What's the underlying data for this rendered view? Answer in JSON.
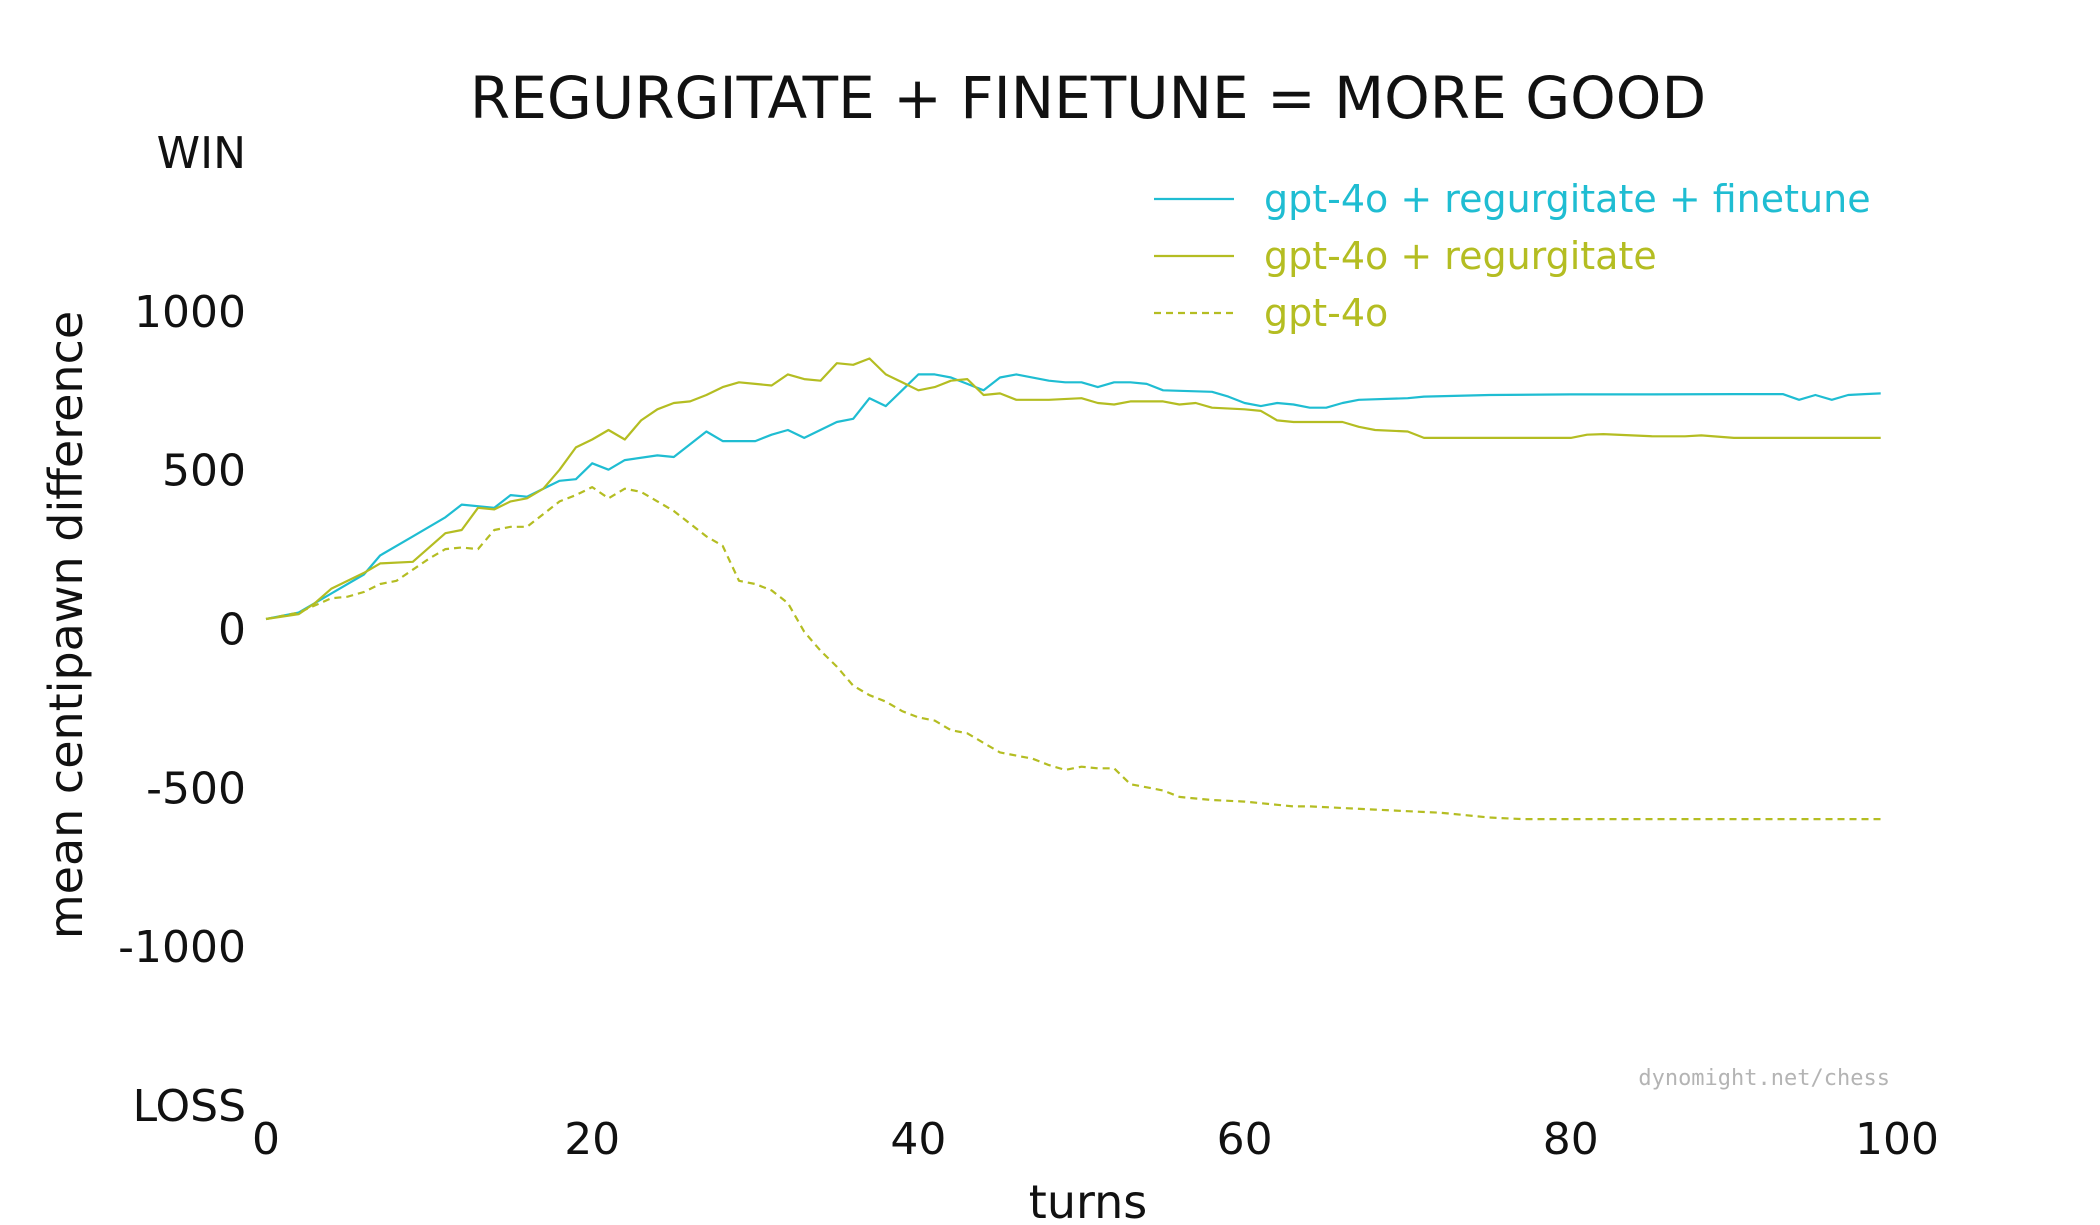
{
  "chart_data": {
    "type": "line",
    "title": "REGURGITATE + FINETUNE = MORE GOOD",
    "xlabel": "turns",
    "ylabel": "mean centipawn difference",
    "xlim": [
      0,
      100
    ],
    "ylim": [
      -1500,
      1500
    ],
    "x_ticks": [
      0,
      20,
      40,
      60,
      80,
      100
    ],
    "y_ticks": [
      {
        "value": 1500,
        "label": "WIN"
      },
      {
        "value": 1000,
        "label": "1000"
      },
      {
        "value": 500,
        "label": "500"
      },
      {
        "value": 0,
        "label": "0"
      },
      {
        "value": -500,
        "label": "-500"
      },
      {
        "value": -1000,
        "label": "-1000"
      },
      {
        "value": -1500,
        "label": "LOSS"
      }
    ],
    "grid": false,
    "legend_position": "top-right",
    "watermark": "dynomight.net/chess",
    "series": [
      {
        "name": "gpt-4o + regurgitate + finetune",
        "color": "#1fbdd2",
        "style": "solid",
        "points": [
          [
            0,
            30
          ],
          [
            2,
            50
          ],
          [
            4,
            110
          ],
          [
            6,
            170
          ],
          [
            7,
            230
          ],
          [
            9,
            290
          ],
          [
            11,
            350
          ],
          [
            12,
            390
          ],
          [
            14,
            380
          ],
          [
            15,
            420
          ],
          [
            16,
            415
          ],
          [
            18,
            465
          ],
          [
            19,
            470
          ],
          [
            20,
            520
          ],
          [
            21,
            500
          ],
          [
            22,
            530
          ],
          [
            24,
            545
          ],
          [
            25,
            540
          ],
          [
            26,
            580
          ],
          [
            27,
            620
          ],
          [
            28,
            590
          ],
          [
            30,
            590
          ],
          [
            31,
            610
          ],
          [
            32,
            625
          ],
          [
            33,
            600
          ],
          [
            35,
            650
          ],
          [
            36,
            660
          ],
          [
            37,
            725
          ],
          [
            38,
            700
          ],
          [
            39,
            750
          ],
          [
            40,
            800
          ],
          [
            41,
            800
          ],
          [
            42,
            790
          ],
          [
            43,
            770
          ],
          [
            44,
            750
          ],
          [
            45,
            790
          ],
          [
            46,
            800
          ],
          [
            48,
            780
          ],
          [
            49,
            775
          ],
          [
            50,
            775
          ],
          [
            51,
            760
          ],
          [
            52,
            775
          ],
          [
            53,
            775
          ],
          [
            54,
            770
          ],
          [
            55,
            750
          ],
          [
            58,
            745
          ],
          [
            59,
            730
          ],
          [
            60,
            710
          ],
          [
            61,
            700
          ],
          [
            62,
            710
          ],
          [
            63,
            705
          ],
          [
            64,
            695
          ],
          [
            65,
            695
          ],
          [
            66,
            710
          ],
          [
            67,
            720
          ],
          [
            70,
            725
          ],
          [
            71,
            730
          ],
          [
            75,
            735
          ],
          [
            80,
            737
          ],
          [
            85,
            737
          ],
          [
            90,
            738
          ],
          [
            93,
            738
          ],
          [
            94,
            720
          ],
          [
            95,
            735
          ],
          [
            96,
            720
          ],
          [
            97,
            735
          ],
          [
            98,
            738
          ],
          [
            99,
            740
          ]
        ]
      },
      {
        "name": "gpt-4o + regurgitate",
        "color": "#b4bd22",
        "style": "solid",
        "points": [
          [
            0,
            30
          ],
          [
            2,
            45
          ],
          [
            3,
            80
          ],
          [
            4,
            125
          ],
          [
            6,
            175
          ],
          [
            7,
            205
          ],
          [
            9,
            210
          ],
          [
            11,
            300
          ],
          [
            12,
            310
          ],
          [
            13,
            380
          ],
          [
            14,
            375
          ],
          [
            15,
            400
          ],
          [
            16,
            410
          ],
          [
            17,
            440
          ],
          [
            18,
            500
          ],
          [
            19,
            570
          ],
          [
            20,
            595
          ],
          [
            21,
            625
          ],
          [
            22,
            595
          ],
          [
            23,
            655
          ],
          [
            24,
            690
          ],
          [
            25,
            710
          ],
          [
            26,
            715
          ],
          [
            27,
            735
          ],
          [
            28,
            760
          ],
          [
            29,
            775
          ],
          [
            30,
            770
          ],
          [
            31,
            765
          ],
          [
            32,
            800
          ],
          [
            33,
            785
          ],
          [
            34,
            780
          ],
          [
            35,
            835
          ],
          [
            36,
            830
          ],
          [
            37,
            850
          ],
          [
            38,
            800
          ],
          [
            39,
            775
          ],
          [
            40,
            750
          ],
          [
            41,
            760
          ],
          [
            42,
            780
          ],
          [
            43,
            785
          ],
          [
            44,
            735
          ],
          [
            45,
            740
          ],
          [
            46,
            720
          ],
          [
            48,
            720
          ],
          [
            50,
            725
          ],
          [
            51,
            710
          ],
          [
            52,
            705
          ],
          [
            53,
            715
          ],
          [
            55,
            715
          ],
          [
            56,
            705
          ],
          [
            57,
            710
          ],
          [
            58,
            695
          ],
          [
            60,
            690
          ],
          [
            61,
            685
          ],
          [
            62,
            655
          ],
          [
            63,
            650
          ],
          [
            66,
            650
          ],
          [
            67,
            635
          ],
          [
            68,
            625
          ],
          [
            70,
            620
          ],
          [
            71,
            600
          ],
          [
            77,
            600
          ],
          [
            80,
            600
          ],
          [
            81,
            610
          ],
          [
            82,
            612
          ],
          [
            85,
            605
          ],
          [
            87,
            605
          ],
          [
            88,
            608
          ],
          [
            90,
            600
          ],
          [
            95,
            600
          ],
          [
            99,
            600
          ]
        ]
      },
      {
        "name": "gpt-4o",
        "color": "#b4bd22",
        "style": "dashed",
        "points": [
          [
            0,
            30
          ],
          [
            2,
            50
          ],
          [
            4,
            95
          ],
          [
            5,
            100
          ],
          [
            6,
            115
          ],
          [
            7,
            140
          ],
          [
            8,
            150
          ],
          [
            9,
            185
          ],
          [
            10,
            220
          ],
          [
            11,
            250
          ],
          [
            12,
            255
          ],
          [
            13,
            250
          ],
          [
            14,
            310
          ],
          [
            15,
            320
          ],
          [
            16,
            320
          ],
          [
            17,
            360
          ],
          [
            18,
            400
          ],
          [
            19,
            420
          ],
          [
            20,
            445
          ],
          [
            21,
            410
          ],
          [
            22,
            440
          ],
          [
            23,
            430
          ],
          [
            24,
            400
          ],
          [
            25,
            370
          ],
          [
            26,
            330
          ],
          [
            27,
            290
          ],
          [
            28,
            260
          ],
          [
            29,
            150
          ],
          [
            30,
            140
          ],
          [
            31,
            120
          ],
          [
            32,
            80
          ],
          [
            33,
            -10
          ],
          [
            34,
            -70
          ],
          [
            35,
            -120
          ],
          [
            36,
            -180
          ],
          [
            37,
            -210
          ],
          [
            38,
            -230
          ],
          [
            39,
            -260
          ],
          [
            40,
            -280
          ],
          [
            41,
            -290
          ],
          [
            42,
            -320
          ],
          [
            43,
            -330
          ],
          [
            44,
            -360
          ],
          [
            45,
            -390
          ],
          [
            46,
            -400
          ],
          [
            47,
            -410
          ],
          [
            48,
            -430
          ],
          [
            49,
            -445
          ],
          [
            50,
            -435
          ],
          [
            51,
            -440
          ],
          [
            52,
            -440
          ],
          [
            53,
            -490
          ],
          [
            54,
            -500
          ],
          [
            55,
            -510
          ],
          [
            56,
            -530
          ],
          [
            57,
            -535
          ],
          [
            58,
            -540
          ],
          [
            60,
            -545
          ],
          [
            61,
            -550
          ],
          [
            62,
            -555
          ],
          [
            63,
            -560
          ],
          [
            64,
            -560
          ],
          [
            66,
            -565
          ],
          [
            68,
            -570
          ],
          [
            70,
            -575
          ],
          [
            72,
            -580
          ],
          [
            74,
            -590
          ],
          [
            75,
            -595
          ],
          [
            77,
            -600
          ],
          [
            80,
            -600
          ],
          [
            85,
            -600
          ],
          [
            90,
            -600
          ],
          [
            95,
            -600
          ],
          [
            99,
            -600
          ]
        ]
      }
    ]
  }
}
